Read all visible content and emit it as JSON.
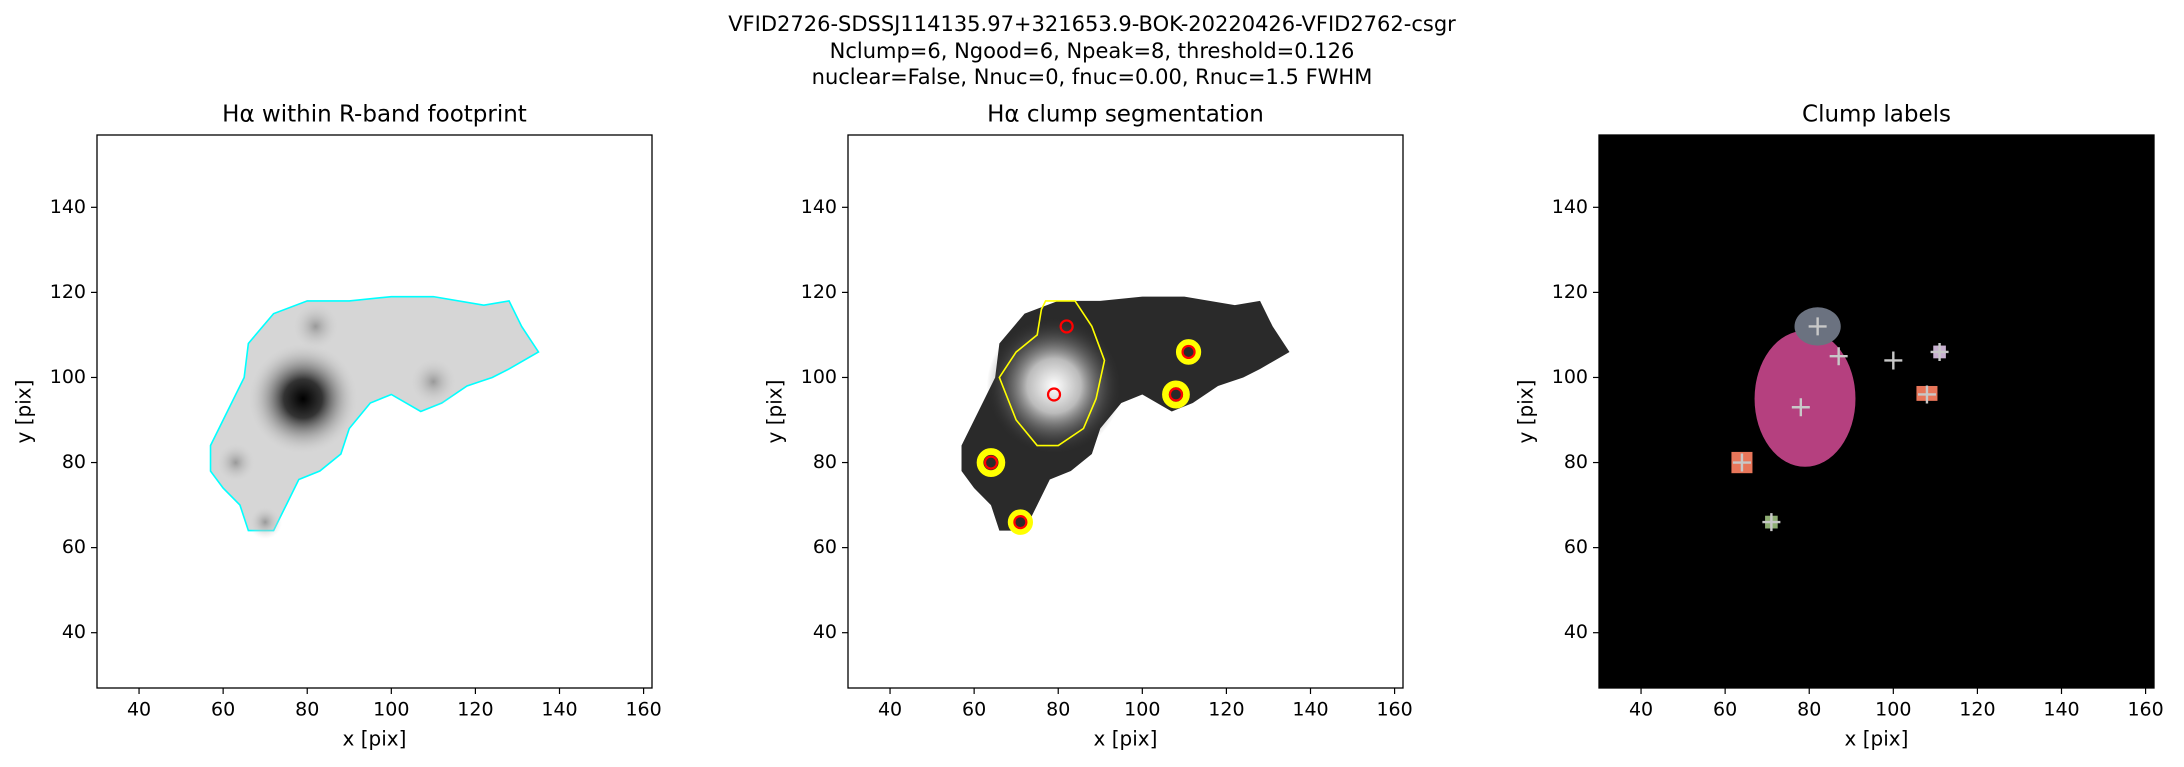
{
  "figure_title": [
    "VFID2726-SDSSJ114135.97+321653.9-BOK-20220426-VFID2762-csgr",
    "Nclump=6, Ngood=6, Npeak=8, threshold=0.126",
    "nuclear=False, Nnuc=0, fnuc=0.00, Rnuc=1.5 FWHM"
  ],
  "chart_data": [
    {
      "type": "image",
      "title": "Hα within R-band footprint",
      "xlabel": "x [pix]",
      "ylabel": "y [pix]",
      "xlim": [
        30,
        162
      ],
      "ylim": [
        27,
        157
      ],
      "xticks": [
        40,
        60,
        80,
        100,
        120,
        140,
        160
      ],
      "yticks": [
        40,
        60,
        80,
        100,
        120,
        140
      ]
    },
    {
      "type": "image",
      "title": "Hα clump segmentation",
      "xlabel": "x [pix]",
      "ylabel": "y [pix]",
      "xlim": [
        30,
        162
      ],
      "ylim": [
        27,
        157
      ],
      "xticks": [
        40,
        60,
        80,
        100,
        120,
        140,
        160
      ],
      "yticks": [
        40,
        60,
        80,
        100,
        120,
        140
      ],
      "points": {
        "x": [
          82,
          79,
          111,
          108,
          64,
          71
        ],
        "y": [
          112,
          96,
          106,
          96,
          80,
          66
        ],
        "color": "#ff0000",
        "marker": "circle"
      }
    },
    {
      "type": "image",
      "title": "Clump labels",
      "xlabel": "x [pix]",
      "ylabel": "y [pix]",
      "xlim": [
        30,
        162
      ],
      "ylim": [
        27,
        157
      ],
      "xticks": [
        40,
        60,
        80,
        100,
        120,
        140,
        160
      ],
      "yticks": [
        40,
        60,
        80,
        100,
        120,
        140
      ],
      "points": {
        "x": [
          82,
          87,
          78,
          100,
          111,
          108,
          64,
          71
        ],
        "y": [
          112,
          105,
          93,
          104,
          106,
          96,
          80,
          66
        ],
        "color": "#c8c8c8",
        "marker": "plus"
      }
    }
  ]
}
